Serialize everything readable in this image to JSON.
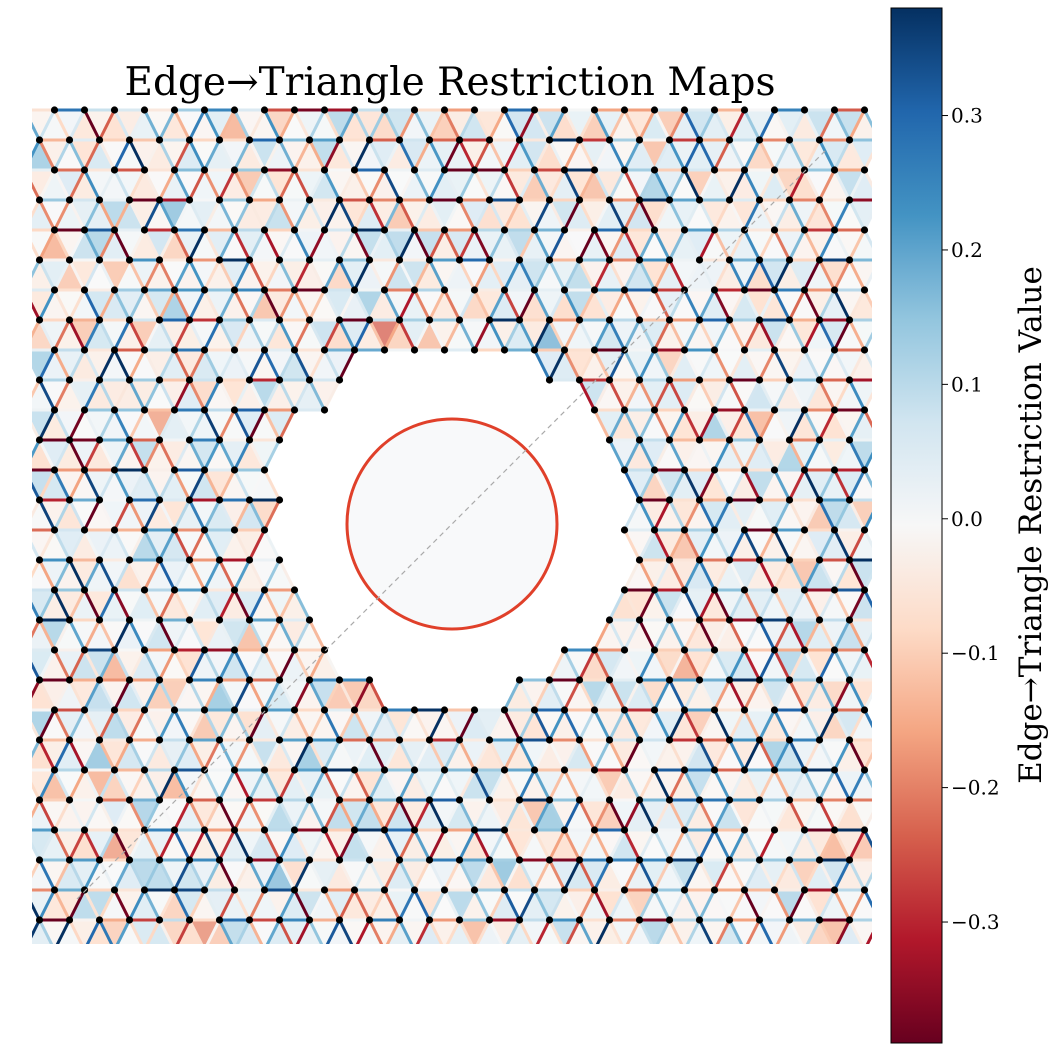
{
  "chart_data": {
    "type": "heatmap",
    "title": "Edge→Triangle Restriction Maps",
    "colorbar": {
      "label": "Edge→Triangle Restriction Value",
      "vmin": -0.39,
      "vmax": 0.38,
      "ticks": [
        0.3,
        0.2,
        0.1,
        0.0,
        -0.1,
        -0.2,
        -0.3
      ],
      "tick_labels": [
        "0.3",
        "0.2",
        "0.1",
        "0.0",
        "−0.1",
        "−0.2",
        "−0.3"
      ],
      "colormap": "RdBu"
    },
    "lattice": {
      "kind": "triangular",
      "rows": 28,
      "nodes_per_row": 29,
      "x_range": [
        -14,
        14
      ],
      "y_range": [
        -14,
        14
      ],
      "hole_center": [
        0,
        0
      ],
      "hole_radius": 3.5,
      "diagonal_line": [
        [
          -12.5,
          -12.5
        ],
        [
          12.5,
          12.5
        ]
      ]
    },
    "grid": false,
    "axes_visible": false
  },
  "colors": {
    "hole_ring": "#e0402a",
    "node": "#000000",
    "diagonal": "#aaaaaa",
    "blue_end": "#053061",
    "red_end": "#67001f"
  }
}
